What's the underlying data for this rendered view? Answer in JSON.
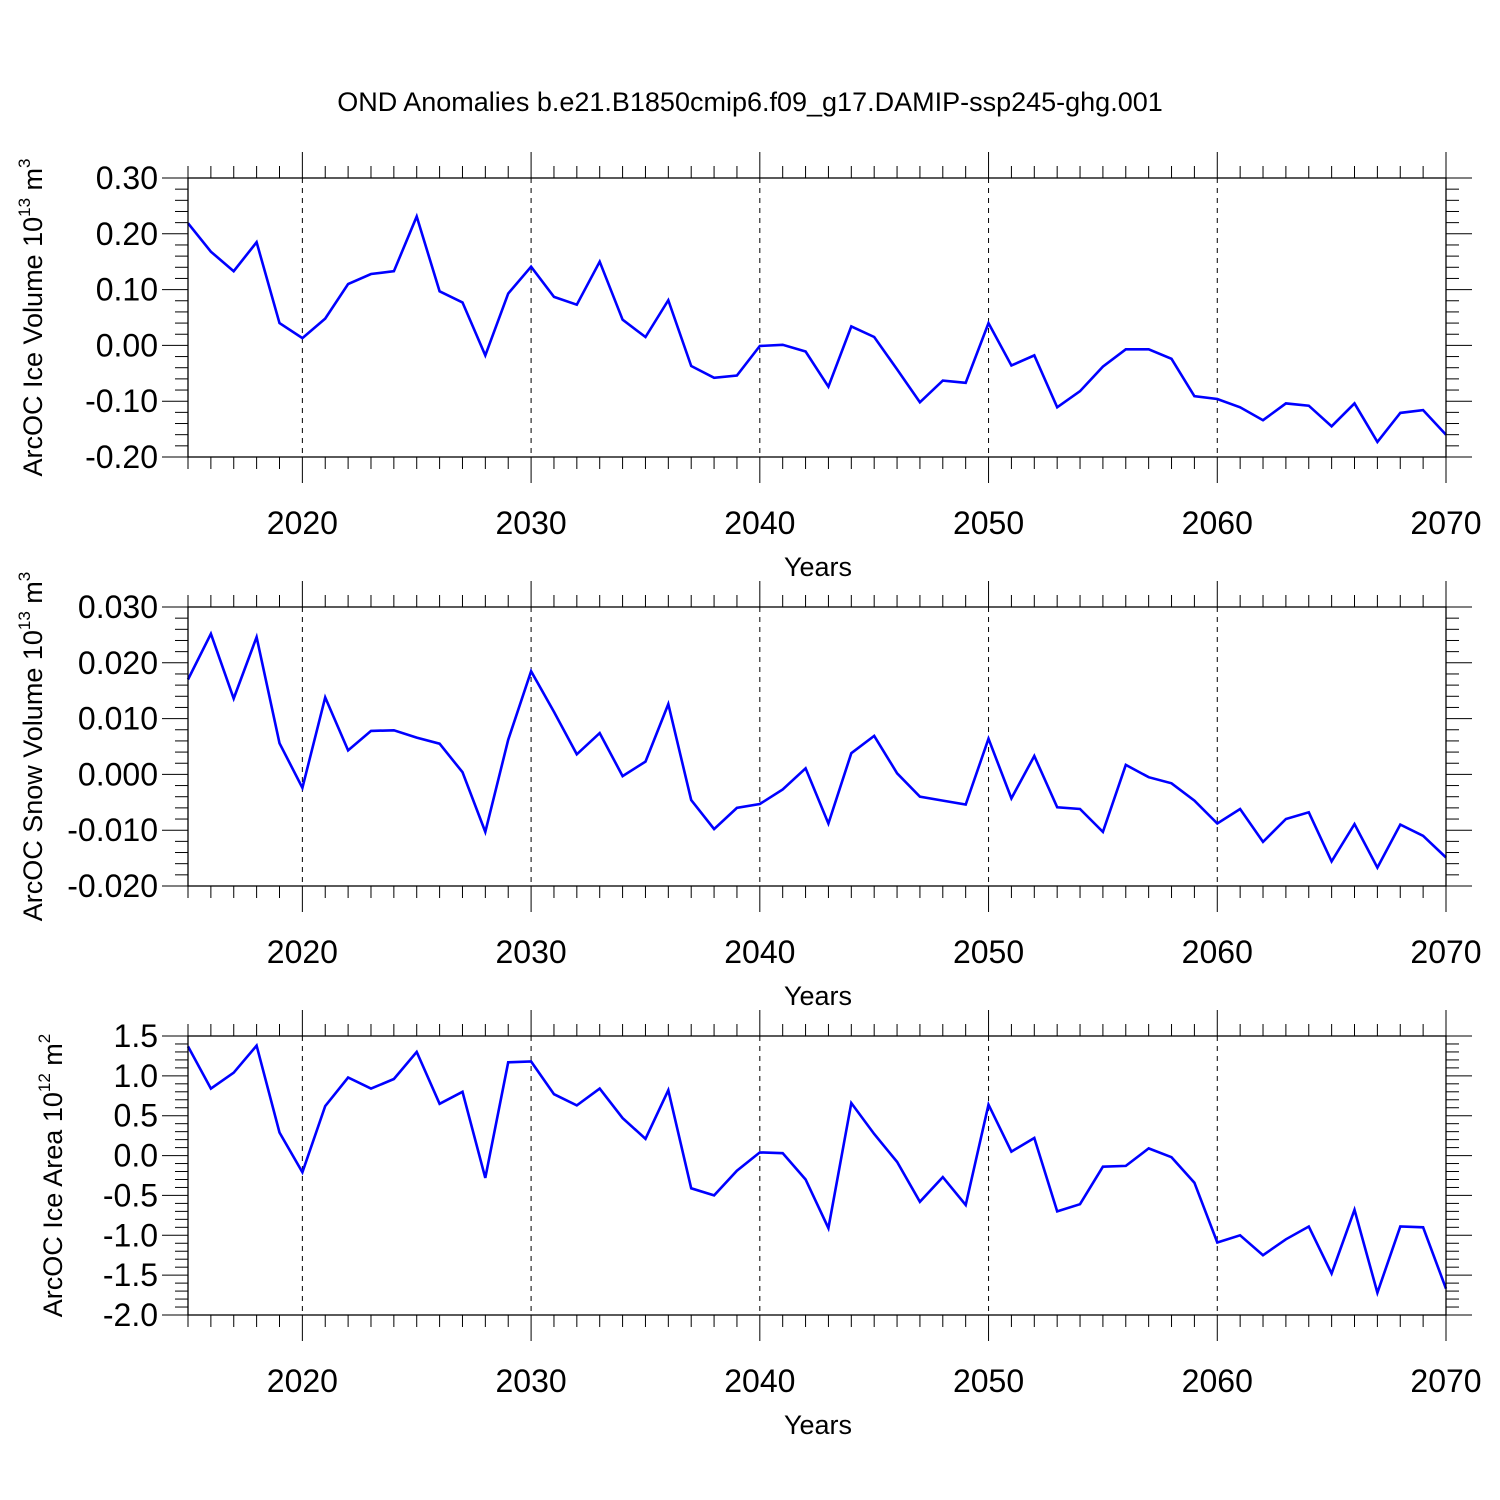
{
  "title": "OND Anomalies b.e21.B1850cmip6.f09_g17.DAMIP-ssp245-ghg.001",
  "chart_data": [
    {
      "type": "line",
      "ylabel": "ArcOC Ice Volume 10",
      "ylabel_exp": "13",
      "ylabel_unit": " m",
      "ylabel_unit_exp": "3",
      "xlabel": "Years",
      "xlim": [
        2015,
        2070
      ],
      "ylim": [
        -0.2,
        0.3
      ],
      "xticks": [
        "2020",
        "2030",
        "2040",
        "2050",
        "2060",
        "2070"
      ],
      "yticks": [
        "0.30",
        "0.20",
        "0.10",
        "0.00",
        "-0.10",
        "-0.20"
      ],
      "ytick_values": [
        0.3,
        0.2,
        0.1,
        0.0,
        -0.1,
        -0.2
      ],
      "grid": "dashed vertical at decades",
      "line_color": "#0000ff",
      "x": [
        2015,
        2016,
        2017,
        2018,
        2019,
        2020,
        2021,
        2022,
        2023,
        2024,
        2025,
        2026,
        2027,
        2028,
        2029,
        2030,
        2031,
        2032,
        2033,
        2034,
        2035,
        2036,
        2037,
        2038,
        2039,
        2040,
        2041,
        2042,
        2043,
        2044,
        2045,
        2046,
        2047,
        2048,
        2049,
        2050,
        2051,
        2052,
        2053,
        2054,
        2055,
        2056,
        2057,
        2058,
        2059,
        2060,
        2061,
        2062,
        2063,
        2064,
        2065,
        2066,
        2067,
        2068,
        2069,
        2070
      ],
      "values": [
        0.219,
        0.168,
        0.133,
        0.185,
        0.04,
        0.013,
        0.048,
        0.11,
        0.128,
        0.133,
        0.231,
        0.097,
        0.077,
        -0.018,
        0.093,
        0.141,
        0.087,
        0.073,
        0.15,
        0.046,
        0.015,
        0.081,
        -0.037,
        -0.058,
        -0.054,
        -0.001,
        0.001,
        -0.011,
        -0.074,
        0.034,
        0.015,
        -0.043,
        -0.102,
        -0.063,
        -0.067,
        0.04,
        -0.036,
        -0.018,
        -0.111,
        -0.082,
        -0.038,
        -0.007,
        -0.007,
        -0.024,
        -0.091,
        -0.096,
        -0.111,
        -0.134,
        -0.104,
        -0.108,
        -0.145,
        -0.104,
        -0.173,
        -0.121,
        -0.116,
        -0.16
      ]
    },
    {
      "type": "line",
      "ylabel": "ArcOC Snow Volume 10",
      "ylabel_exp": "13",
      "ylabel_unit": " m",
      "ylabel_unit_exp": "3",
      "xlabel": "Years",
      "xlim": [
        2015,
        2070
      ],
      "ylim": [
        -0.02,
        0.03
      ],
      "xticks": [
        "2020",
        "2030",
        "2040",
        "2050",
        "2060",
        "2070"
      ],
      "yticks": [
        "0.030",
        "0.020",
        "0.010",
        "0.000",
        "-0.010",
        "-0.020"
      ],
      "ytick_values": [
        0.03,
        0.02,
        0.01,
        0.0,
        -0.01,
        -0.02
      ],
      "grid": "dashed vertical at decades",
      "line_color": "#0000ff",
      "x": [
        2015,
        2016,
        2017,
        2018,
        2019,
        2020,
        2021,
        2022,
        2023,
        2024,
        2025,
        2026,
        2027,
        2028,
        2029,
        2030,
        2031,
        2032,
        2033,
        2034,
        2035,
        2036,
        2037,
        2038,
        2039,
        2040,
        2041,
        2042,
        2043,
        2044,
        2045,
        2046,
        2047,
        2048,
        2049,
        2050,
        2051,
        2052,
        2053,
        2054,
        2055,
        2056,
        2057,
        2058,
        2059,
        2060,
        2061,
        2062,
        2063,
        2064,
        2065,
        2066,
        2067,
        2068,
        2069,
        2070
      ],
      "values": [
        0.017,
        0.0252,
        0.0136,
        0.0246,
        0.0056,
        -0.0024,
        0.0138,
        0.0043,
        0.0078,
        0.0079,
        0.0066,
        0.0055,
        0.0004,
        -0.0103,
        0.0062,
        0.0185,
        0.0112,
        0.0036,
        0.0074,
        -0.0003,
        0.0023,
        0.0126,
        -0.0046,
        -0.0098,
        -0.006,
        -0.0053,
        -0.0027,
        0.0011,
        -0.0088,
        0.0038,
        0.0069,
        0.0002,
        -0.004,
        -0.0047,
        -0.0054,
        0.0064,
        -0.0043,
        0.0033,
        -0.0059,
        -0.0062,
        -0.0103,
        0.0017,
        -0.0005,
        -0.0016,
        -0.0047,
        -0.0088,
        -0.0062,
        -0.0121,
        -0.008,
        -0.0068,
        -0.0156,
        -0.0089,
        -0.0167,
        -0.009,
        -0.011,
        -0.0149
      ]
    },
    {
      "type": "line",
      "ylabel": "ArcOC Ice Area 10",
      "ylabel_exp": "12",
      "ylabel_unit": " m",
      "ylabel_unit_exp": "2",
      "xlabel": "Years",
      "xlim": [
        2015,
        2070
      ],
      "ylim": [
        -2.0,
        1.5
      ],
      "xticks": [
        "2020",
        "2030",
        "2040",
        "2050",
        "2060",
        "2070"
      ],
      "yticks": [
        "1.5",
        "1.0",
        "0.5",
        "0.0",
        "-0.5",
        "-1.0",
        "-1.5",
        "-2.0"
      ],
      "ytick_values": [
        1.5,
        1.0,
        0.5,
        0.0,
        -0.5,
        -1.0,
        -1.5,
        -2.0
      ],
      "grid": "dashed vertical at decades",
      "line_color": "#0000ff",
      "x": [
        2015,
        2016,
        2017,
        2018,
        2019,
        2020,
        2021,
        2022,
        2023,
        2024,
        2025,
        2026,
        2027,
        2028,
        2029,
        2030,
        2031,
        2032,
        2033,
        2034,
        2035,
        2036,
        2037,
        2038,
        2039,
        2040,
        2041,
        2042,
        2043,
        2044,
        2045,
        2046,
        2047,
        2048,
        2049,
        2050,
        2051,
        2052,
        2053,
        2054,
        2055,
        2056,
        2057,
        2058,
        2059,
        2060,
        2061,
        2062,
        2063,
        2064,
        2065,
        2066,
        2067,
        2068,
        2069,
        2070
      ],
      "values": [
        1.37,
        0.84,
        1.04,
        1.38,
        0.29,
        -0.21,
        0.62,
        0.98,
        0.84,
        0.96,
        1.3,
        0.65,
        0.8,
        -0.28,
        1.17,
        1.18,
        0.77,
        0.63,
        0.84,
        0.47,
        0.21,
        0.82,
        -0.41,
        -0.5,
        -0.19,
        0.04,
        0.03,
        -0.3,
        -0.91,
        0.66,
        0.27,
        -0.08,
        -0.58,
        -0.27,
        -0.62,
        0.64,
        0.05,
        0.22,
        -0.7,
        -0.61,
        -0.14,
        -0.13,
        0.09,
        -0.02,
        -0.34,
        -1.09,
        -1.0,
        -1.25,
        -1.05,
        -0.89,
        -1.48,
        -0.68,
        -1.72,
        -0.89,
        -0.9,
        -1.67
      ]
    }
  ]
}
